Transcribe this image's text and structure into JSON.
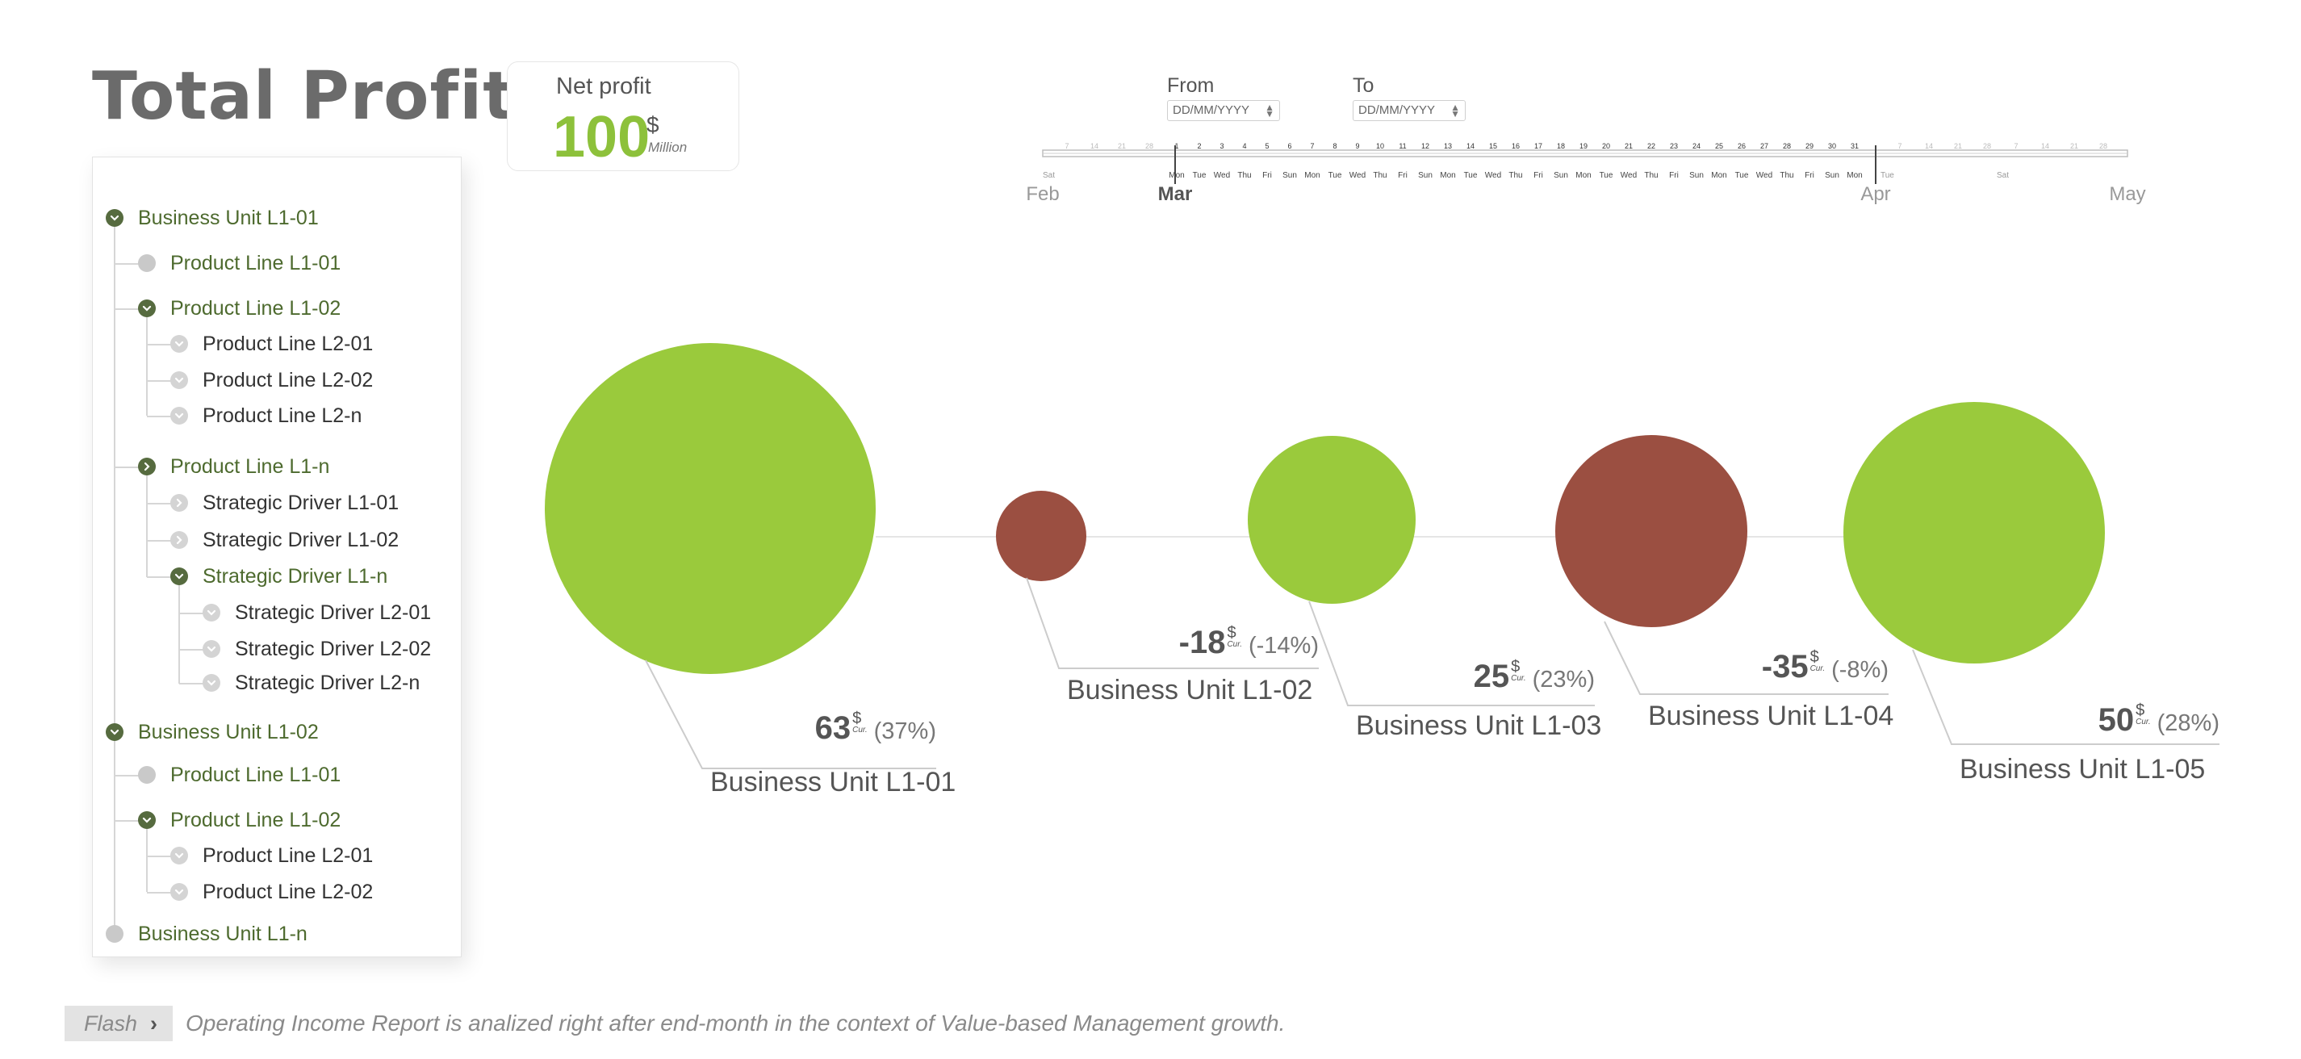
{
  "header": {
    "title": "Total Profits"
  },
  "net_profit": {
    "label": "Net profit",
    "value": "100",
    "currency": "$",
    "unit": "Million"
  },
  "date_range": {
    "from_label": "From",
    "to_label": "To",
    "from_value": "DD/MM/YYYY",
    "to_value": "DD/MM/YYYY"
  },
  "timeline": {
    "months": [
      "Feb",
      "Mar",
      "Apr",
      "May"
    ],
    "left_days": [
      "7",
      "14",
      "21",
      "28"
    ],
    "march_days": [
      "1",
      "2",
      "3",
      "4",
      "5",
      "6",
      "7",
      "8",
      "9",
      "10",
      "11",
      "12",
      "13",
      "14",
      "15",
      "16",
      "17",
      "18",
      "19",
      "20",
      "21",
      "22",
      "23",
      "24",
      "25",
      "26",
      "27",
      "28",
      "29",
      "30",
      "31"
    ],
    "right_days": [
      "7",
      "14",
      "21",
      "28",
      "7",
      "14",
      "21",
      "28"
    ],
    "march_weekdays": [
      "Mon",
      "Tue",
      "Wed",
      "Thu",
      "Fri",
      "Sun",
      "Mon",
      "Tue",
      "Wed",
      "Thu",
      "Fri",
      "Sun",
      "Mon",
      "Tue",
      "Wed",
      "Thu",
      "Fri",
      "Sun",
      "Mon",
      "Tue",
      "Wed",
      "Thu",
      "Fri",
      "Sun",
      "Mon",
      "Tue",
      "Wed",
      "Thu",
      "Fri",
      "Sun",
      "Mon"
    ],
    "edge_weekdays": {
      "feb": "Sat",
      "apr": "Tue",
      "apr_mid": "Sat"
    },
    "selected_start": "Mar 1",
    "selected_end": "Apr"
  },
  "tree": [
    {
      "label": "Business Unit L1-01",
      "level": 0,
      "state": "expanded"
    },
    {
      "label": "Product Line L1-01",
      "level": 1,
      "state": "leaf"
    },
    {
      "label": "Product Line L1-02",
      "level": 1,
      "state": "expanded"
    },
    {
      "label": "Product Line L2-01",
      "level": 2,
      "state": "collapsed-light"
    },
    {
      "label": "Product Line L2-02",
      "level": 2,
      "state": "collapsed-light"
    },
    {
      "label": "Product Line L2-n",
      "level": 2,
      "state": "collapsed-light"
    },
    {
      "label": "Product Line L1-n",
      "level": 1,
      "state": "collapsed"
    },
    {
      "label": "Strategic Driver L1-01",
      "level": 2,
      "state": "collapsed-light"
    },
    {
      "label": "Strategic Driver L1-02",
      "level": 2,
      "state": "collapsed-light"
    },
    {
      "label": "Strategic Driver L1-n",
      "level": 2,
      "state": "expanded"
    },
    {
      "label": "Strategic Driver L2-01",
      "level": 3,
      "state": "collapsed-light"
    },
    {
      "label": "Strategic Driver L2-02",
      "level": 3,
      "state": "collapsed-light"
    },
    {
      "label": "Strategic Driver L2-n",
      "level": 3,
      "state": "collapsed-light"
    },
    {
      "label": "Business Unit L1-02",
      "level": 0,
      "state": "expanded"
    },
    {
      "label": "Product Line L1-01",
      "level": 1,
      "state": "leaf"
    },
    {
      "label": "Product Line L1-02",
      "level": 1,
      "state": "expanded"
    },
    {
      "label": "Product Line L2-01",
      "level": 2,
      "state": "collapsed-light"
    },
    {
      "label": "Product Line L2-02",
      "level": 2,
      "state": "collapsed-light"
    },
    {
      "label": "Business Unit L1-n",
      "level": 0,
      "state": "leaf"
    }
  ],
  "bubbles": [
    {
      "label": "Business Unit L1-01",
      "value": "63",
      "currency": "$",
      "currency_sub": "Cur.",
      "percent": "(37%)",
      "raw": 63,
      "color": "#9aca3c"
    },
    {
      "label": "Business Unit L1-02",
      "value": "-18",
      "currency": "$",
      "currency_sub": "Cur.",
      "percent": "(-14%)",
      "raw": -18,
      "color": "#9b4f41"
    },
    {
      "label": "Business Unit L1-03",
      "value": "25",
      "currency": "$",
      "currency_sub": "Cur.",
      "percent": "(23%)",
      "raw": 25,
      "color": "#9aca3c"
    },
    {
      "label": "Business Unit L1-04",
      "value": "-35",
      "currency": "$",
      "currency_sub": "Cur.",
      "percent": "(-8%)",
      "raw": -35,
      "color": "#9b4f41"
    },
    {
      "label": "Business Unit L1-05",
      "value": "50",
      "currency": "$",
      "currency_sub": "Cur.",
      "percent": "(28%)",
      "raw": 50,
      "color": "#9aca3c"
    }
  ],
  "footer": {
    "flash_label": "Flash",
    "flash_text": "Operating Income Report is analized right after end-month in the context of Value-based Management growth."
  },
  "colors": {
    "positive": "#9aca3c",
    "negative": "#9b4f41",
    "tree_green": "#4d6a2e",
    "title_gray": "#6b6b6b"
  }
}
